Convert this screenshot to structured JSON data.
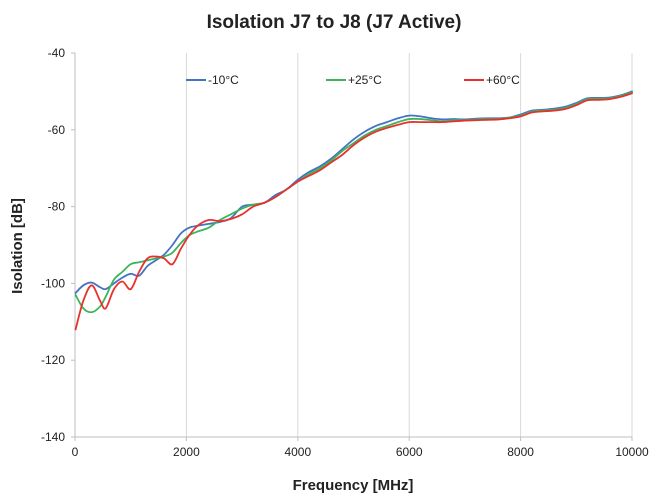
{
  "chart_data": {
    "type": "line",
    "title": "Isolation J7 to J8 (J7 Active)",
    "xlabel": "Frequency [MHz]",
    "ylabel": "Isolation [dB]",
    "xlim": [
      0,
      10000
    ],
    "ylim": [
      -140,
      -40
    ],
    "x_ticks": [
      0,
      2000,
      4000,
      6000,
      8000,
      10000
    ],
    "y_ticks": [
      -40,
      -60,
      -80,
      -100,
      -120,
      -140
    ],
    "x_tick_labels": [
      "0",
      "2000",
      "4000",
      "6000",
      "8000",
      "10000"
    ],
    "y_tick_labels": [
      "-40",
      "-60",
      "-80",
      "-100",
      "-120",
      "-140"
    ],
    "grid": "vertical",
    "legend_position": "top",
    "series": [
      {
        "name": "-10°C",
        "color": "#4472c4",
        "x": [
          10,
          150,
          300,
          450,
          550,
          700,
          850,
          1000,
          1150,
          1300,
          1450,
          1600,
          1750,
          1900,
          2050,
          2200,
          2400,
          2600,
          2800,
          3000,
          3200,
          3400,
          3600,
          3800,
          4000,
          4200,
          4400,
          4600,
          4800,
          5000,
          5200,
          5400,
          5600,
          5800,
          6000,
          6200,
          6400,
          6600,
          6800,
          7000,
          7200,
          7400,
          7600,
          7800,
          8000,
          8200,
          8400,
          8600,
          8800,
          9000,
          9200,
          9400,
          9600,
          9800,
          10000
        ],
        "values": [
          -102.5,
          -100.5,
          -99.8,
          -101.0,
          -101.5,
          -100.0,
          -98.5,
          -97.5,
          -98.0,
          -95.5,
          -94.0,
          -92.5,
          -90.0,
          -87.0,
          -85.5,
          -85.0,
          -84.5,
          -84.0,
          -83.0,
          -80.0,
          -79.5,
          -79.0,
          -77.0,
          -75.5,
          -73.0,
          -71.0,
          -69.5,
          -67.5,
          -65.0,
          -62.5,
          -60.5,
          -59.0,
          -58.0,
          -57.0,
          -56.3,
          -56.5,
          -57.0,
          -57.3,
          -57.2,
          -57.3,
          -57.1,
          -57.0,
          -57.0,
          -56.8,
          -56.0,
          -55.0,
          -54.8,
          -54.5,
          -54.0,
          -53.0,
          -51.8,
          -51.7,
          -51.6,
          -51.0,
          -50.0
        ]
      },
      {
        "name": "+25°C",
        "color": "#3cb55a",
        "x": [
          10,
          150,
          300,
          450,
          550,
          700,
          850,
          1000,
          1150,
          1300,
          1450,
          1600,
          1750,
          1900,
          2050,
          2200,
          2400,
          2600,
          2800,
          3000,
          3200,
          3400,
          3600,
          3800,
          4000,
          4200,
          4400,
          4600,
          4800,
          5000,
          5200,
          5400,
          5600,
          5800,
          6000,
          6200,
          6400,
          6600,
          6800,
          7000,
          7200,
          7400,
          7600,
          7800,
          8000,
          8200,
          8400,
          8600,
          8800,
          9000,
          9200,
          9400,
          9600,
          9800,
          10000
        ],
        "values": [
          -103.0,
          -106.5,
          -107.5,
          -106.0,
          -103.5,
          -99.0,
          -97.0,
          -95.0,
          -94.5,
          -94.0,
          -93.5,
          -93.0,
          -92.0,
          -89.5,
          -87.5,
          -86.5,
          -85.5,
          -83.5,
          -82.0,
          -80.5,
          -79.5,
          -79.0,
          -77.5,
          -75.5,
          -73.5,
          -71.5,
          -70.0,
          -68.0,
          -65.5,
          -63.5,
          -61.5,
          -60.0,
          -59.0,
          -58.0,
          -57.2,
          -57.2,
          -57.5,
          -57.8,
          -57.5,
          -57.5,
          -57.3,
          -57.2,
          -57.2,
          -56.8,
          -56.3,
          -55.3,
          -55.0,
          -54.8,
          -54.3,
          -53.3,
          -52.0,
          -51.9,
          -51.8,
          -51.2,
          -50.2
        ]
      },
      {
        "name": "+60°C",
        "color": "#e8312d",
        "x": [
          10,
          150,
          300,
          450,
          550,
          700,
          850,
          1000,
          1150,
          1300,
          1450,
          1600,
          1750,
          1900,
          2050,
          2200,
          2400,
          2600,
          2800,
          3000,
          3200,
          3400,
          3600,
          3800,
          4000,
          4200,
          4400,
          4600,
          4800,
          5000,
          5200,
          5400,
          5600,
          5800,
          6000,
          6200,
          6400,
          6600,
          6800,
          7000,
          7200,
          7400,
          7600,
          7800,
          8000,
          8200,
          8400,
          8600,
          8800,
          9000,
          9200,
          9400,
          9600,
          9800,
          10000
        ],
        "values": [
          -112.0,
          -104.5,
          -100.5,
          -104.5,
          -106.5,
          -101.5,
          -99.5,
          -101.5,
          -97.0,
          -93.5,
          -93.0,
          -93.5,
          -95.0,
          -91.0,
          -87.5,
          -85.0,
          -83.5,
          -83.8,
          -83.2,
          -82.0,
          -80.0,
          -79.0,
          -77.5,
          -75.5,
          -73.5,
          -72.0,
          -70.5,
          -68.5,
          -66.5,
          -64.0,
          -62.0,
          -60.5,
          -59.5,
          -58.7,
          -58.0,
          -58.0,
          -58.0,
          -58.0,
          -57.8,
          -57.6,
          -57.5,
          -57.4,
          -57.3,
          -57.0,
          -56.5,
          -55.5,
          -55.2,
          -55.0,
          -54.6,
          -53.6,
          -52.3,
          -52.2,
          -52.0,
          -51.4,
          -50.5
        ]
      }
    ]
  }
}
